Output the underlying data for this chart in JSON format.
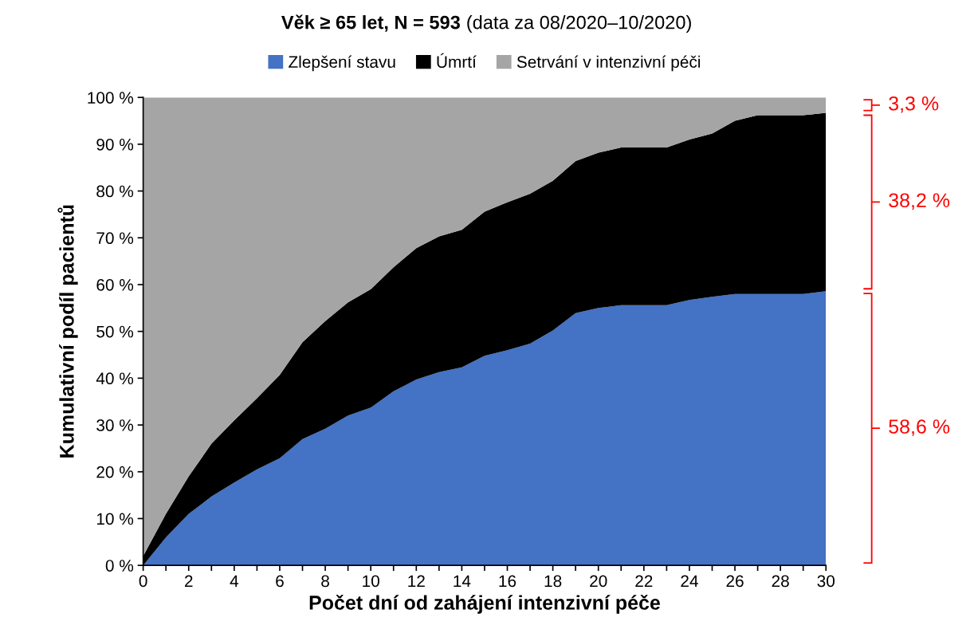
{
  "chart_data": {
    "type": "area",
    "stacked": true,
    "title": "Věk ≥ 65 let, N = 593",
    "subtitle": "(data za 08/2020–10/2020)",
    "xlabel": "Počet dní od zahájení intenzivní péče",
    "ylabel": "Kumulativní podíl pacientů",
    "x": [
      0,
      1,
      2,
      3,
      4,
      5,
      6,
      7,
      8,
      9,
      10,
      11,
      12,
      13,
      14,
      15,
      16,
      17,
      18,
      19,
      20,
      21,
      22,
      23,
      24,
      25,
      26,
      27,
      28,
      29,
      30
    ],
    "series": [
      {
        "name": "Zlepšení stavu",
        "color": "#4472c4",
        "values": [
          0,
          6,
          11,
          14.7,
          17.7,
          20.5,
          22.9,
          27,
          29.2,
          32,
          33.7,
          37.2,
          39.7,
          41.3,
          42.3,
          44.8,
          46,
          47.4,
          50.2,
          53.9,
          55,
          55.6,
          55.6,
          55.6,
          56.7,
          57.4,
          58,
          58,
          58,
          58,
          58.6
        ]
      },
      {
        "name": "Úmrtí",
        "color": "#000000",
        "values": [
          2,
          5,
          8,
          11.3,
          13.3,
          15.2,
          17.8,
          20.7,
          23,
          24.2,
          25.3,
          26.5,
          28.1,
          29,
          29.4,
          30.8,
          31.6,
          32,
          32,
          32.5,
          33.2,
          33.7,
          33.7,
          33.7,
          34.3,
          34.9,
          37,
          38.2,
          38.2,
          38.2,
          38.1
        ]
      },
      {
        "name": "Setrvání v intenzivní péči",
        "color": "#a5a5a5",
        "values": [
          98,
          89,
          81,
          74,
          69,
          64.3,
          59.3,
          52.3,
          47.8,
          43.8,
          41,
          36.3,
          32.2,
          29.7,
          28.3,
          24.4,
          22.4,
          20.6,
          17.8,
          13.6,
          11.8,
          10.7,
          10.7,
          10.7,
          9,
          7.7,
          5,
          3.8,
          3.8,
          3.8,
          3.3
        ]
      }
    ],
    "xlim": [
      0,
      30
    ],
    "xticks": [
      0,
      {
        "value": 1,
        "label": null
      },
      2,
      {
        "value": 3,
        "label": null
      },
      4,
      {
        "value": 5,
        "label": null
      },
      6,
      {
        "value": 7,
        "label": null
      },
      8,
      {
        "value": 9,
        "label": null
      },
      10,
      {
        "value": 11,
        "label": null
      },
      12,
      {
        "value": 13,
        "label": null
      },
      14,
      {
        "value": 15,
        "label": null
      },
      16,
      {
        "value": 17,
        "label": null
      },
      18,
      {
        "value": 19,
        "label": null
      },
      20,
      {
        "value": 21,
        "label": null
      },
      22,
      {
        "value": 23,
        "label": null
      },
      24,
      {
        "value": 25,
        "label": null
      },
      26,
      {
        "value": 27,
        "label": null
      },
      28,
      {
        "value": 29,
        "label": null
      },
      30
    ],
    "ylim": [
      0,
      100
    ],
    "yticks": [
      {
        "value": 0,
        "label": "0 %"
      },
      {
        "value": 10,
        "label": "10 %"
      },
      {
        "value": 20,
        "label": "20 %"
      },
      {
        "value": 30,
        "label": "30 %"
      },
      {
        "value": 40,
        "label": "40 %"
      },
      {
        "value": 50,
        "label": "50 %"
      },
      {
        "value": 60,
        "label": "60 %"
      },
      {
        "value": 70,
        "label": "70 %"
      },
      {
        "value": 80,
        "label": "80 %"
      },
      {
        "value": 90,
        "label": "90 %"
      },
      {
        "value": 100,
        "label": "100 %"
      }
    ],
    "annotations": [
      "3,3 %",
      "38,2 %",
      "58,6 %"
    ],
    "grid": false,
    "legend": "top"
  }
}
